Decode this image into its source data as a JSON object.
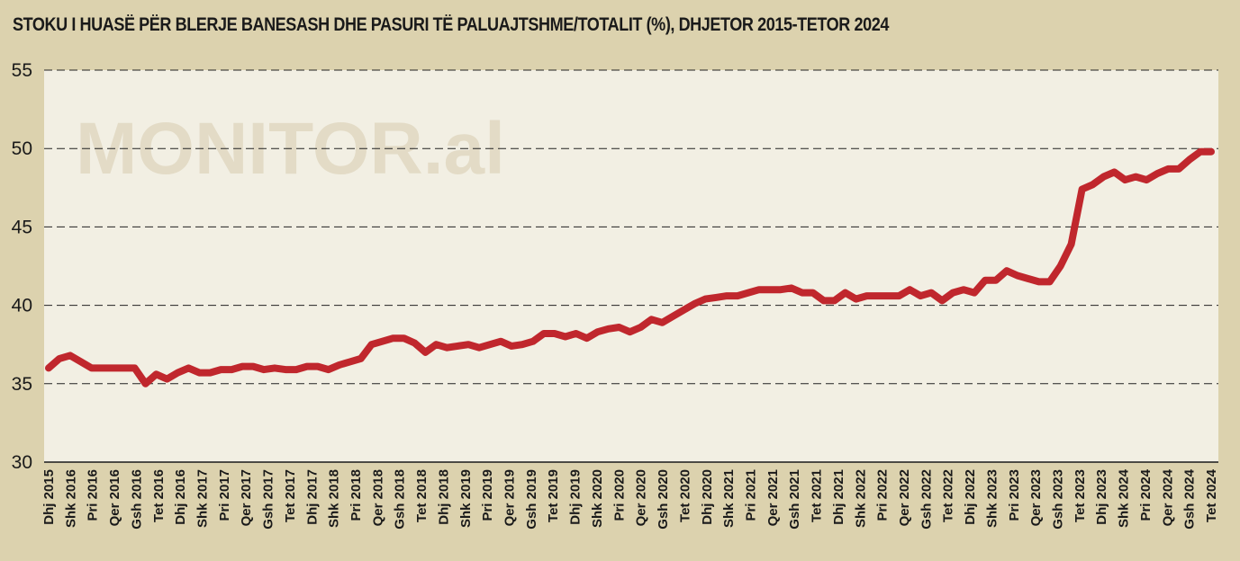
{
  "chart_data": {
    "type": "line",
    "title": "STOKU I HUASË PËR BLERJE BANESASH DHE PASURI TË PALUAJTSHME/TOTALIT (%), DHJETOR 2015-TETOR 2024",
    "watermark": "MONITOR.al",
    "xlabel": "",
    "ylabel": "",
    "ylim": [
      30,
      55
    ],
    "yticks": [
      "30",
      "35",
      "40",
      "45",
      "50",
      "55"
    ],
    "grid": true,
    "line_color": "#c0272d",
    "plot_background": "#f2efe3",
    "page_background": "#dcd2ae",
    "x_tick_labels": [
      "Dhj 2015",
      "Shk 2016",
      "Pri 2016",
      "Qer 2016",
      "Gsh 2016",
      "Tet 2016",
      "Dhj 2016",
      "Shk 2017",
      "Pri 2017",
      "Qer 2017",
      "Gsh 2017",
      "Tet 2017",
      "Dhj 2017",
      "Shk 2018",
      "Pri 2018",
      "Qer 2018",
      "Gsh 2018",
      "Tet 2018",
      "Dhj 2018",
      "Shk 2019",
      "Pri 2019",
      "Qer 2019",
      "Gsh 2019",
      "Tet 2019",
      "Dhj 2019",
      "Shk 2020",
      "Pri 2020",
      "Qer 2020",
      "Gsh 2020",
      "Tet 2020",
      "Dhj 2020",
      "Shk 2021",
      "Pri 2021",
      "Qer 2021",
      "Gsh 2021",
      "Tet 2021",
      "Dhj 2021",
      "Shk 2022",
      "Pri 2022",
      "Qer 2022",
      "Gsh 2022",
      "Tet 2022",
      "Dhj 2022",
      "Shk 2023",
      "Pri 2023",
      "Qer 2023",
      "Gsh 2023",
      "Tet 2023",
      "Dhj 2023",
      "Shk 2024",
      "Pri 2024",
      "Qer 2024",
      "Gsh 2024",
      "Tet 2024"
    ],
    "series": [
      {
        "values": [
          36.0,
          36.6,
          36.8,
          36.4,
          36.0,
          36.0,
          36.0,
          36.0,
          36.0,
          35.0,
          35.6,
          35.3,
          35.7,
          36.0,
          35.7,
          35.7,
          35.9,
          35.9,
          36.1,
          36.1,
          35.9,
          36.0,
          35.9,
          35.9,
          36.1,
          36.1,
          35.9,
          36.2,
          36.4,
          36.6,
          37.5,
          37.7,
          37.9,
          37.9,
          37.6,
          37.0,
          37.5,
          37.3,
          37.4,
          37.5,
          37.3,
          37.5,
          37.7,
          37.4,
          37.5,
          37.7,
          38.2,
          38.2,
          38.0,
          38.2,
          37.9,
          38.3,
          38.5,
          38.6,
          38.3,
          38.6,
          39.1,
          38.9,
          39.3,
          39.7,
          40.1,
          40.4,
          40.5,
          40.6,
          40.6,
          40.8,
          41.0,
          41.0,
          41.0,
          41.1,
          40.8,
          40.8,
          40.3,
          40.3,
          40.8,
          40.4,
          40.6,
          40.6,
          40.6,
          40.6,
          41.0,
          40.6,
          40.8,
          40.3,
          40.8,
          41.0,
          40.8,
          41.6,
          41.6,
          42.2,
          41.9,
          41.7,
          41.5,
          41.5,
          42.5,
          43.9,
          47.4,
          47.7,
          48.2,
          48.5,
          48.0,
          48.2,
          48.0,
          48.4,
          48.7,
          48.7,
          49.3,
          49.8,
          49.8
        ]
      }
    ]
  }
}
